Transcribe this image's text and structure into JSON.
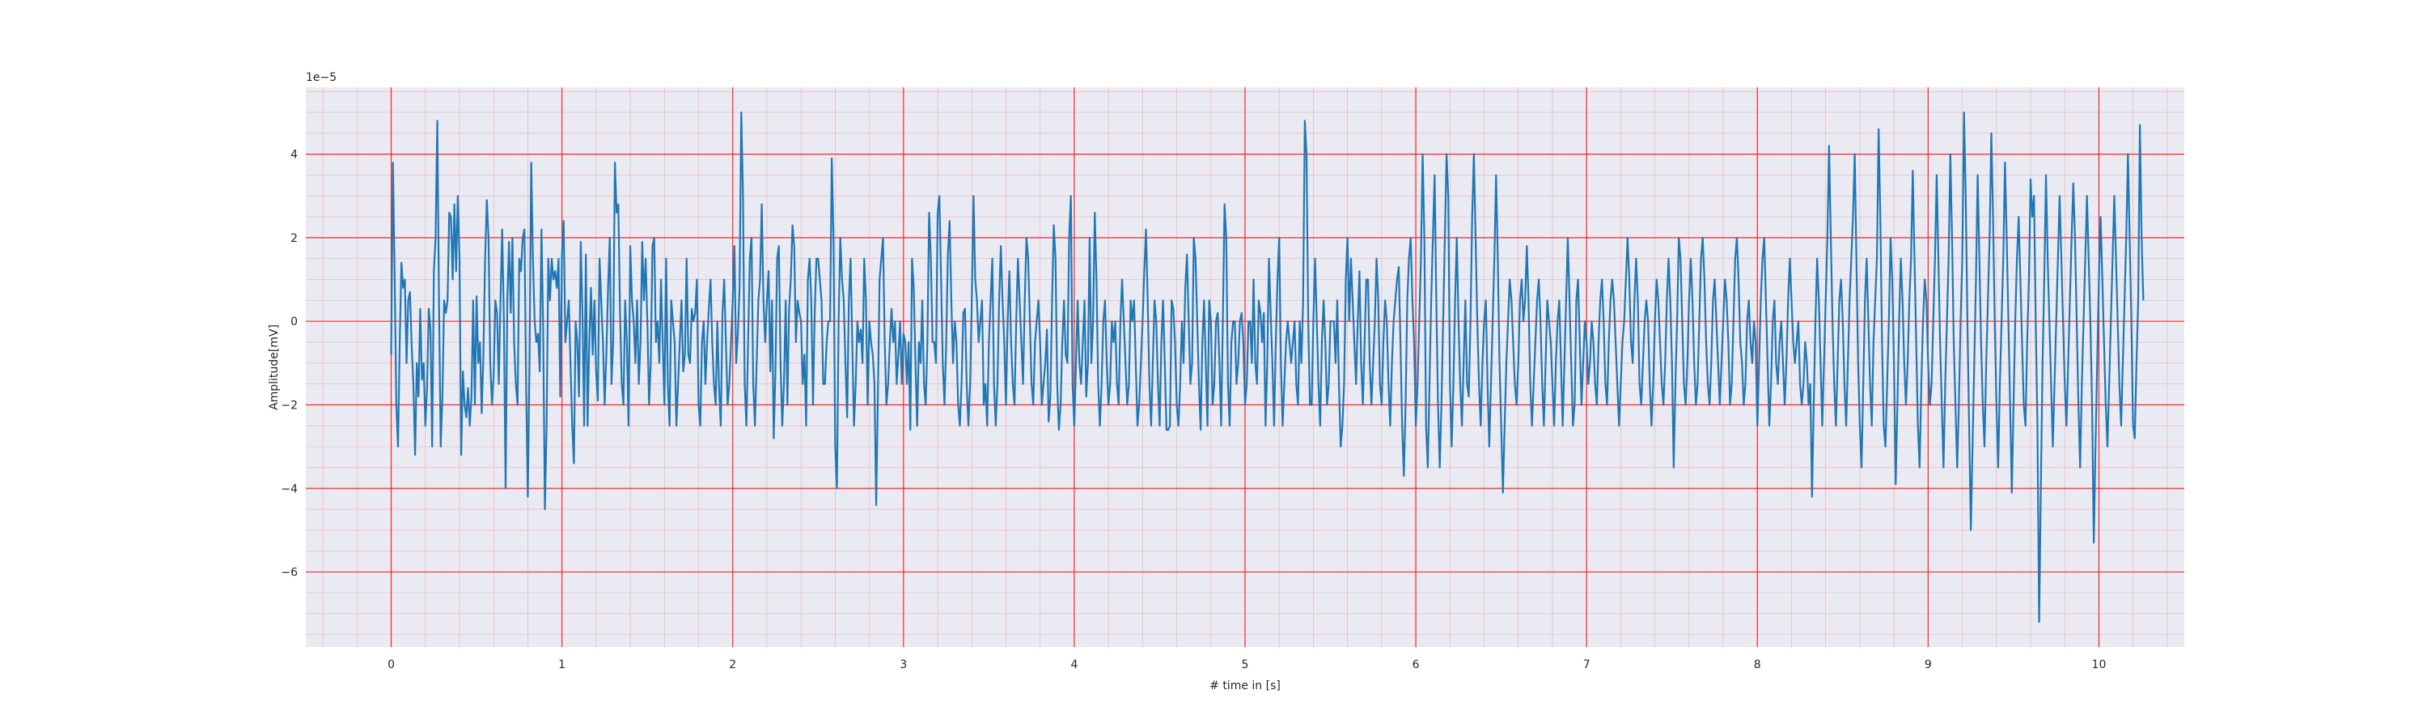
{
  "chart_data": {
    "type": "line",
    "title": "",
    "xlabel": "# time in [s]",
    "ylabel": "Amplitude[mV]",
    "y_offset_label": "1e−5",
    "xlim": [
      -0.5,
      10.5
    ],
    "ylim": [
      -7.8e-05,
      5.6e-05
    ],
    "x_ticks": [
      0,
      1,
      2,
      3,
      4,
      5,
      6,
      7,
      8,
      9,
      10
    ],
    "x_tick_labels": [
      "0",
      "1",
      "2",
      "3",
      "4",
      "5",
      "6",
      "7",
      "8",
      "9",
      "10"
    ],
    "y_ticks": [
      -6e-05,
      -4e-05,
      -2e-05,
      0,
      2e-05,
      4e-05
    ],
    "y_tick_labels": [
      "−6",
      "−4",
      "−2",
      "0",
      "2",
      "4"
    ],
    "grid": {
      "major": true,
      "minor": true,
      "color": "#ff0000"
    },
    "background": "#eaeaf2",
    "series": [
      {
        "color": "#1f77b4",
        "x_start": 0,
        "x_step": 0.01,
        "values_x1e5": [
          -0.8,
          3.8,
          1.2,
          -2.0,
          -3.0,
          -0.5,
          1.4,
          0.8,
          1.0,
          -1.0,
          0.5,
          0.7,
          -0.6,
          -1.5,
          -3.2,
          -1.0,
          -1.8,
          0.3,
          -1.4,
          -1.0,
          -2.5,
          -1.6,
          0.3,
          -0.2,
          -3.0,
          1.2,
          2.0,
          4.8,
          0.5,
          -3.0,
          -1.8,
          0.5,
          0.2,
          0.5,
          2.6,
          2.5,
          1.0,
          2.8,
          1.2,
          3.0,
          1.5,
          -3.2,
          -1.2,
          -2.0,
          -2.3,
          -1.6,
          -2.5,
          -1.8,
          0.5,
          -2.0,
          0.6,
          -1.0,
          -0.5,
          -2.2,
          -0.8,
          1.5,
          2.9,
          2.0,
          -1.0,
          -2.0,
          -1.3,
          0.5,
          0.2,
          -1.5,
          0.5,
          2.2,
          0.0,
          -4.0,
          0.5,
          1.9,
          0.2,
          2.0,
          -0.5,
          -1.5,
          -2.0,
          1.5,
          1.2,
          2.0,
          2.2,
          -1.5,
          -4.2,
          -1.0,
          3.8,
          1.5,
          0.0,
          -0.5,
          -0.3,
          -1.2,
          2.2,
          -0.2,
          -4.5,
          -2.5,
          1.5,
          0.5,
          1.5,
          1.0,
          1.2,
          0.8,
          1.5,
          -1.8,
          1.6,
          2.4,
          -0.5,
          0.0,
          0.5,
          -1.0,
          -2.5,
          -3.4,
          0.0,
          -0.5,
          -1.8,
          1.9,
          0.2,
          -2.5,
          1.6,
          -2.5,
          -0.5,
          0.8,
          -0.8,
          0.5,
          -1.2,
          -1.9,
          1.5,
          0.5,
          -0.5,
          -2.0,
          -0.8,
          0.8,
          2.0,
          -1.5,
          -0.5,
          3.8,
          2.6,
          2.8,
          0.2,
          -1.5,
          -2.0,
          0.5,
          -0.5,
          -2.5,
          1.8,
          0.5,
          0.0,
          -1.0,
          0.5,
          -1.5,
          -0.5,
          1.9,
          0.5,
          1.5,
          0.0,
          -2.0,
          -1.0,
          1.8,
          2.0,
          -0.5,
          0.0,
          -1.0,
          1.0,
          -0.5,
          -2.0,
          1.5,
          -1.5,
          -2.5,
          0.5,
          0.0,
          -0.5,
          -2.5,
          -1.5,
          -0.5,
          0.5,
          -1.2,
          -0.8,
          1.5,
          -0.8,
          -1.0,
          0.3,
          0.0,
          0.2,
          1.0,
          -2.0,
          -2.5,
          -0.5,
          0.0,
          -1.5,
          -0.5,
          0.3,
          1.0,
          -0.5,
          -1.5,
          -2.0,
          0.0,
          -1.6,
          -2.5,
          0.2,
          1.0,
          -0.5,
          -2.0,
          -1.5,
          -0.5,
          0.5,
          1.8,
          -1.0,
          -0.3,
          0.8,
          5.0,
          3.0,
          -1.5,
          -2.5,
          -0.5,
          1.5,
          2.0,
          -1.5,
          -2.5,
          -1.0,
          0.5,
          1.0,
          2.8,
          0.5,
          -0.5,
          0.5,
          1.2,
          -1.2,
          0.5,
          -2.8,
          -1.2,
          1.5,
          1.8,
          -1.0,
          -2.5,
          -1.5,
          0.5,
          -2.0,
          0.3,
          1.0,
          2.3,
          1.8,
          -0.5,
          0.5,
          0.2,
          0.0,
          -1.5,
          -0.8,
          -2.5,
          1.0,
          1.5,
          0.5,
          -2.0,
          0.2,
          1.5,
          1.5,
          1.0,
          0.5,
          -1.5,
          -1.5,
          -0.5,
          0.0,
          0.0,
          3.9,
          2.0,
          -3.0,
          -4.0,
          0.0,
          2.0,
          1.0,
          0.5,
          -1.0,
          -2.3,
          0.5,
          1.5,
          -0.5,
          -2.5,
          -1.5,
          0.0,
          -0.5,
          -0.2,
          -1.0,
          1.5,
          0.5,
          -2.0,
          0.0,
          -0.5,
          -0.8,
          -1.5,
          -4.4,
          -1.8,
          1.0,
          1.5,
          2.0,
          -0.5,
          -2.0,
          -1.5,
          -0.5,
          0.3,
          -0.5,
          0.0,
          -1.5,
          -0.8,
          0.0,
          -1.5,
          -0.3,
          -0.5,
          -1.5,
          -0.5,
          -2.6,
          1.5,
          0.8,
          -1.0,
          -2.5,
          -0.5,
          -1.0,
          0.5,
          -1.5,
          -2.0,
          -0.5,
          2.6,
          1.5,
          -0.5,
          -0.5,
          -1.0,
          2.6,
          3.0,
          1.0,
          -1.0,
          -2.0,
          -0.5,
          1.6,
          2.4,
          0.5,
          -1.0,
          0.0,
          -0.5,
          -2.0,
          -2.5,
          -1.5,
          0.2,
          0.3,
          -1.5,
          -2.5,
          -1.5,
          0.5,
          3.0,
          1.0,
          0.5,
          -0.5,
          0.0,
          0.5,
          -2.0,
          -1.5,
          -2.5,
          -0.5,
          0.5,
          1.5,
          -1.5,
          -2.5,
          -1.5,
          0.5,
          1.8,
          0.5,
          -0.5,
          -2.0,
          0.0,
          1.2,
          -0.5,
          -1.5,
          -2.0,
          0.0,
          1.5,
          0.5,
          -0.5,
          -1.5,
          0.5,
          2.0,
          1.5,
          0.0,
          -1.5,
          -2.0,
          -0.5,
          0.0,
          0.5,
          -0.5,
          -2.0,
          -1.5,
          -1.0,
          -0.2,
          -2.4,
          -1.8,
          0.5,
          2.3,
          1.5,
          -1.5,
          -2.6,
          -2.0,
          -0.5,
          0.5,
          -0.8,
          -1.0,
          2.0,
          3.0,
          -1.5,
          -2.5,
          -1.0,
          0.5,
          -1.0,
          -1.5,
          -0.5,
          0.5,
          -1.8,
          -1.0,
          2.0,
          -1.0,
          0.0,
          2.6,
          1.0,
          -1.5,
          -2.5,
          -1.5,
          0.0,
          0.5,
          -1.0,
          -2.0,
          -1.5,
          0.0,
          -0.5,
          0.0,
          -1.5,
          -2.0,
          0.0,
          1.0,
          0.0,
          -1.0,
          -2.0,
          -1.5,
          0.5,
          0.0,
          0.5,
          -1.0,
          -2.5,
          -2.0,
          -1.0,
          0.0,
          1.2,
          2.2,
          0.5,
          -1.5,
          -2.5,
          -1.0,
          0.5,
          0.0,
          -1.5,
          -2.5,
          -0.5,
          0.5,
          -1.0,
          -2.6,
          -2.6,
          -2.5,
          0.5,
          0.3,
          -0.5,
          -2.0,
          -2.5,
          -1.5,
          0.0,
          -1.0,
          0.8,
          1.6,
          0.0,
          -1.5,
          -1.0,
          2.0,
          1.5,
          0.0,
          -1.5,
          -2.6,
          -0.5,
          0.5,
          -1.0,
          -2.5,
          0.5,
          0.0,
          -2.0,
          -1.5,
          0.0,
          0.2,
          -1.0,
          -2.5,
          0.0,
          2.8,
          2.0,
          -1.5,
          -2.5,
          -0.5,
          0.0,
          0.0,
          -1.5,
          -1.0,
          0.0,
          0.2,
          -0.5,
          -2.0,
          -1.5,
          0.0,
          0.0,
          -1.0,
          1.0,
          -1.0,
          -1.5,
          0.5,
          0.2,
          -0.5,
          0.2,
          -2.5,
          -1.0,
          1.5,
          0.2,
          -1.0,
          -2.5,
          -0.5,
          1.0,
          2.0,
          -1.0,
          -2.5,
          -1.5,
          -0.5,
          0.0,
          -0.5,
          -1.0,
          -0.5,
          0.0,
          -1.5,
          -2.0,
          0.0,
          -1.0,
          0.5,
          4.8,
          4.0,
          0.0,
          -2.0,
          -2.0,
          0.0,
          1.5,
          0.0,
          -1.5,
          -2.5,
          -0.5,
          0.5,
          -0.5,
          -2.0,
          -1.5,
          0.0,
          0.0,
          0.0,
          -1.0,
          0.5,
          -1.5,
          -3.0,
          -2.5,
          -1.5,
          1.0,
          2.0,
          0.0,
          1.5,
          0.5,
          -0.5,
          -1.5,
          0.0,
          1.2,
          -1.0,
          -2.0,
          -0.5,
          1.0,
          1.0,
          -1.0,
          -2.0,
          -1.0,
          0.0,
          1.5,
          0.5,
          -1.5,
          -2.0,
          -0.5,
          0.5,
          0.0,
          -1.5,
          -2.5,
          -1.0,
          0.0,
          0.5,
          1.0,
          1.3,
          -0.5,
          -2.5,
          -3.7,
          -2.0,
          0.5,
          1.5,
          2.0,
          0.5,
          -0.5,
          -2.5,
          -1.5,
          0.0,
          1.5,
          4.0,
          2.0,
          -2.5,
          -3.5,
          -1.5,
          0.5,
          2.0,
          3.5,
          0.5,
          -2.0,
          -3.5,
          -2.0,
          0.0,
          2.0,
          4.0,
          3.0,
          -1.5,
          -3.0,
          -1.5,
          0.5,
          2.0,
          0.0,
          -1.5,
          -2.5,
          -1.0,
          0.5,
          -1.5,
          -1.8,
          0.0,
          2.5,
          4.0,
          2.0,
          0.0,
          -1.5,
          -2.5,
          -1.0,
          0.0,
          0.5,
          -1.5,
          -3.0,
          -1.5,
          0.0,
          1.5,
          3.5,
          1.5,
          -1.0,
          -2.5,
          -4.1,
          -2.5,
          -1.0,
          0.0,
          1.0,
          0.5,
          -0.5,
          -1.5,
          -2.0,
          -1.0,
          0.5,
          1.0,
          0.0,
          0.5,
          1.8,
          0.5,
          -1.5,
          -2.5,
          -1.5,
          -0.5,
          0.5,
          1.0,
          0.0,
          -1.5,
          -2.5,
          -1.0,
          0.5,
          0.0,
          -0.5,
          -1.5,
          -2.5,
          -1.0,
          0.0,
          0.5,
          -1.0,
          -2.5,
          -1.0,
          0.5,
          2.0,
          0.5,
          -1.0,
          -2.5,
          -2.0,
          0.5,
          1.0,
          -0.5,
          -2.0,
          -1.0,
          0.0,
          -0.5,
          -1.5,
          -1.0,
          0.0,
          -0.5,
          -1.5,
          -2.0,
          -0.5,
          0.5,
          1.0,
          0.0,
          -1.5,
          -2.0,
          -0.5,
          0.5,
          1.0,
          0.5,
          -0.5,
          -1.5,
          -2.5,
          -1.5,
          -0.5,
          0.0,
          1.0,
          2.0,
          1.0,
          -0.5,
          -1.0,
          0.5,
          1.5,
          0.5,
          -1.5,
          -2.0,
          -1.0,
          0.0,
          0.5,
          0.0,
          -1.5,
          -2.5,
          -1.5,
          0.0,
          1.0,
          0.5,
          -0.5,
          -1.5,
          -2.0,
          -1.0,
          0.5,
          1.5,
          0.5,
          -1.0,
          -3.5,
          -1.5,
          0.0,
          2.0,
          1.5,
          0.0,
          -1.5,
          -2.0,
          -1.0,
          0.5,
          1.5,
          0.5,
          -1.0,
          -2.0,
          -1.5,
          0.0,
          1.5,
          2.0,
          1.0,
          -0.5,
          -1.5,
          -2.0,
          -1.0,
          0.5,
          1.0,
          0.0,
          -1.0,
          -2.0,
          -1.0,
          0.0,
          1.0,
          0.5,
          -0.5,
          -2.0,
          -1.5,
          0.0,
          1.5,
          2.0,
          1.0,
          -0.5,
          -1.0,
          -2.0,
          -1.5,
          0.0,
          0.5,
          -0.5,
          -1.0,
          0.0,
          -0.5,
          -2.5,
          -1.0,
          0.5,
          1.5,
          2.0,
          0.5,
          -1.0,
          -2.5,
          -1.5,
          0.0,
          0.5,
          -1.0,
          -1.5,
          -0.5,
          0.0,
          -1.0,
          -2.0,
          -1.0,
          0.5,
          1.5,
          0.5,
          -0.5,
          -1.0,
          -0.5,
          0.0,
          -1.5,
          -2.0,
          -1.5,
          -0.5,
          -1.0,
          -2.0,
          -1.5,
          -4.2,
          -2.0,
          0.0,
          1.5,
          0.5,
          -1.0,
          -2.5,
          -1.0,
          0.5,
          2.0,
          4.2,
          2.0,
          0.0,
          -1.5,
          -2.5,
          -1.0,
          0.5,
          1.0,
          0.0,
          -1.5,
          -2.5,
          -1.0,
          0.5,
          1.5,
          2.5,
          4.0,
          1.5,
          -1.0,
          -2.5,
          -3.5,
          -1.5,
          0.5,
          1.5,
          0.0,
          -1.5,
          -2.5,
          -0.5,
          0.5,
          1.5,
          4.6,
          2.5,
          -0.5,
          -2.5,
          -3.0,
          -1.5,
          0.0,
          2.0,
          1.0,
          -1.0,
          -3.9,
          -2.0,
          0.0,
          1.5,
          0.5,
          -1.0,
          -2.0,
          -1.0,
          0.5,
          1.5,
          3.6,
          1.5,
          -0.5,
          -2.5,
          -3.5,
          -1.5,
          0.0,
          1.0,
          0.5,
          -1.0,
          -2.0,
          -1.5,
          0.0,
          1.5,
          3.5,
          1.5,
          -0.5,
          -2.0,
          -3.5,
          -1.5,
          0.0,
          1.5,
          4.0,
          2.0,
          -0.5,
          -2.0,
          -3.5,
          -2.0,
          0.0,
          1.5,
          5.0,
          3.0,
          0.0,
          -2.5,
          -5.0,
          -3.0,
          -1.0,
          1.0,
          3.5,
          1.5,
          -0.5,
          -2.0,
          -3.0,
          -1.0,
          0.5,
          2.0,
          4.5,
          2.5,
          0.0,
          -2.0,
          -3.5,
          -1.5,
          0.0,
          1.5,
          3.8,
          2.0,
          0.0,
          -2.0,
          -4.1,
          -2.0,
          0.0,
          1.5,
          2.5,
          1.0,
          -0.5,
          -2.0,
          -2.5,
          -0.5,
          1.0,
          3.4,
          2.5,
          3.0,
          0.0,
          -2.5,
          -7.2,
          -4.0,
          -1.0,
          1.0,
          3.5,
          1.5,
          0.0,
          -1.5,
          -3.0,
          -1.5,
          0.0,
          1.5,
          3.0,
          1.5,
          0.0,
          -1.5,
          -2.5,
          -1.0,
          0.5,
          2.0,
          3.3,
          2.0,
          0.0,
          -2.0,
          -3.5,
          -1.5,
          0.0,
          1.5,
          3.0,
          1.5,
          0.0,
          -2.0,
          -5.3,
          -3.0,
          -1.0,
          1.0,
          2.5,
          1.0,
          -0.5,
          -2.0,
          -3.0,
          -1.5,
          0.0,
          1.5,
          3.0,
          1.5,
          0.0,
          -1.5,
          -2.5,
          -1.0,
          0.5,
          2.0,
          4.0,
          2.0,
          0.0,
          -2.5,
          -2.8,
          -1.0,
          0.5,
          4.7,
          2.0,
          0.5
        ]
      }
    ]
  }
}
